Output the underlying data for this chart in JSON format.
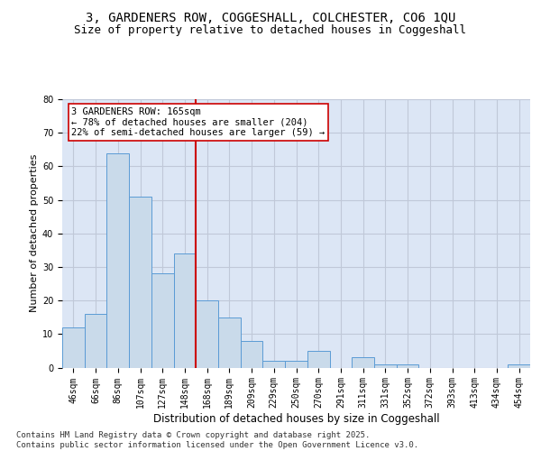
{
  "title_line1": "3, GARDENERS ROW, COGGESHALL, COLCHESTER, CO6 1QU",
  "title_line2": "Size of property relative to detached houses in Coggeshall",
  "xlabel": "Distribution of detached houses by size in Coggeshall",
  "ylabel": "Number of detached properties",
  "categories": [
    "46sqm",
    "66sqm",
    "86sqm",
    "107sqm",
    "127sqm",
    "148sqm",
    "168sqm",
    "189sqm",
    "209sqm",
    "229sqm",
    "250sqm",
    "270sqm",
    "291sqm",
    "311sqm",
    "331sqm",
    "352sqm",
    "372sqm",
    "393sqm",
    "413sqm",
    "434sqm",
    "454sqm"
  ],
  "values": [
    12,
    16,
    64,
    51,
    28,
    34,
    20,
    15,
    8,
    2,
    2,
    5,
    0,
    3,
    1,
    1,
    0,
    0,
    0,
    0,
    1
  ],
  "bar_color": "#c9daea",
  "bar_edge_color": "#5b9bd5",
  "vline_color": "#cc0000",
  "annotation_text": "3 GARDENERS ROW: 165sqm\n← 78% of detached houses are smaller (204)\n22% of semi-detached houses are larger (59) →",
  "annotation_box_edge": "#cc0000",
  "ylim": [
    0,
    80
  ],
  "yticks": [
    0,
    10,
    20,
    30,
    40,
    50,
    60,
    70,
    80
  ],
  "grid_color": "#c0c8d8",
  "background_color": "#dce6f5",
  "footer_text": "Contains HM Land Registry data © Crown copyright and database right 2025.\nContains public sector information licensed under the Open Government Licence v3.0.",
  "title_fontsize": 10,
  "subtitle_fontsize": 9,
  "ylabel_fontsize": 8,
  "xlabel_fontsize": 8.5,
  "tick_fontsize": 7,
  "annotation_fontsize": 7.5,
  "footer_fontsize": 6.5
}
